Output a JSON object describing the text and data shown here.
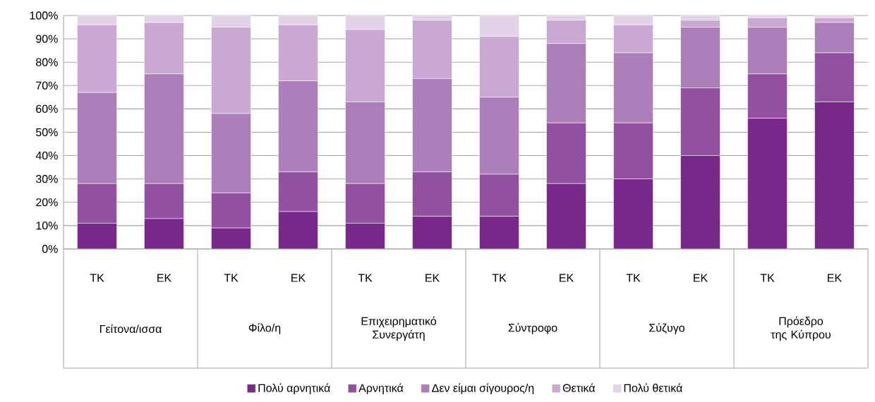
{
  "chart_data": {
    "type": "bar",
    "stacked": true,
    "categories": [
      "TK",
      "EK",
      "TK",
      "EK",
      "TK",
      "EK",
      "TK",
      "EK",
      "TK",
      "EK",
      "TK",
      "EK"
    ],
    "annotations": [
      "Γείτονα/ισσα",
      "Φίλο/η",
      "Επιχειρηματικό Συνεργάτη",
      "Σύντροφο",
      "Σύζυγο",
      "Πρόεδρο της Κύπρου"
    ],
    "series": [
      {
        "name": "Πολύ αρνητικά",
        "color": "#772888",
        "values": [
          11,
          13,
          9,
          16,
          11,
          14,
          14,
          28,
          30,
          40,
          56,
          63
        ]
      },
      {
        "name": "Αρνητικά",
        "color": "#9251a0",
        "values": [
          17,
          15,
          15,
          17,
          17,
          19,
          18,
          26,
          24,
          29,
          19,
          21
        ]
      },
      {
        "name": "Δεν είμαι σίγουρος/η",
        "color": "#ad7fba",
        "values": [
          39,
          47,
          34,
          39,
          35,
          40,
          33,
          34,
          30,
          26,
          20,
          13
        ]
      },
      {
        "name": "Θετικά",
        "color": "#c9a8d2",
        "values": [
          29,
          22,
          37,
          24,
          31,
          25,
          26,
          10,
          12,
          3,
          4,
          2
        ]
      },
      {
        "name": "Πολύ θετικά",
        "color": "#e3d3e8",
        "values": [
          4,
          3,
          5,
          4,
          6,
          2,
          9,
          2,
          4,
          2,
          1,
          1
        ]
      }
    ],
    "ylim": [
      0,
      100
    ],
    "yticks": [
      {
        "value": 0,
        "label": "0%"
      },
      {
        "value": 10,
        "label": "10%"
      },
      {
        "value": 20,
        "label": "20%"
      },
      {
        "value": 30,
        "label": "30%"
      },
      {
        "value": 40,
        "label": "40%"
      },
      {
        "value": 50,
        "label": "50%"
      },
      {
        "value": 60,
        "label": "60%"
      },
      {
        "value": 70,
        "label": "70%"
      },
      {
        "value": 80,
        "label": "80%"
      },
      {
        "value": 90,
        "label": "90%"
      },
      {
        "value": 100,
        "label": "100%"
      }
    ],
    "grid": "y",
    "legend": "bottom"
  }
}
